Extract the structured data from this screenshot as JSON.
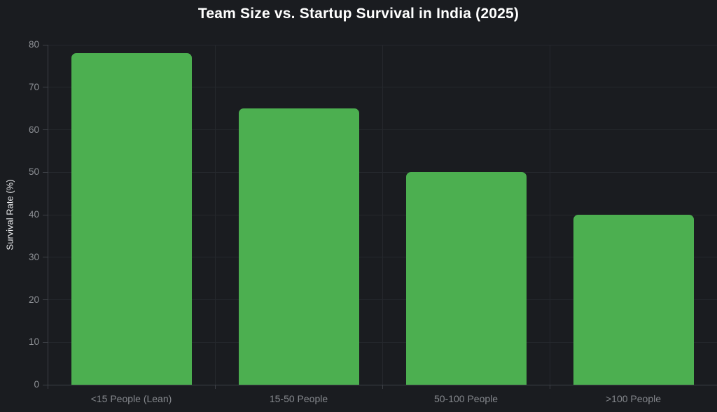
{
  "title": "Team Size vs. Startup Survival in India (2025)",
  "colors": {
    "background": "#1a1c20",
    "bar": "#4caf50",
    "gridline": "#25282d",
    "axis": "#3d4046",
    "tick_label": "#8f9297",
    "x_label": "#85888d",
    "axis_title": "#e8e9eb",
    "title": "#ffffff"
  },
  "chart_data": {
    "type": "bar",
    "title": "Team Size vs. Startup Survival in India (2025)",
    "categories": [
      "<15 People (Lean)",
      "15-50 People",
      "50-100 People",
      ">100 People"
    ],
    "values": [
      78,
      65,
      50,
      40
    ],
    "xlabel": "",
    "ylabel": "Survival Rate (%)",
    "ylim": [
      0,
      80
    ],
    "yticks": [
      0,
      10,
      20,
      30,
      40,
      50,
      60,
      70,
      80
    ],
    "grid": true,
    "legend": false,
    "bar_color": "#4caf50",
    "background": "#1a1c20"
  }
}
